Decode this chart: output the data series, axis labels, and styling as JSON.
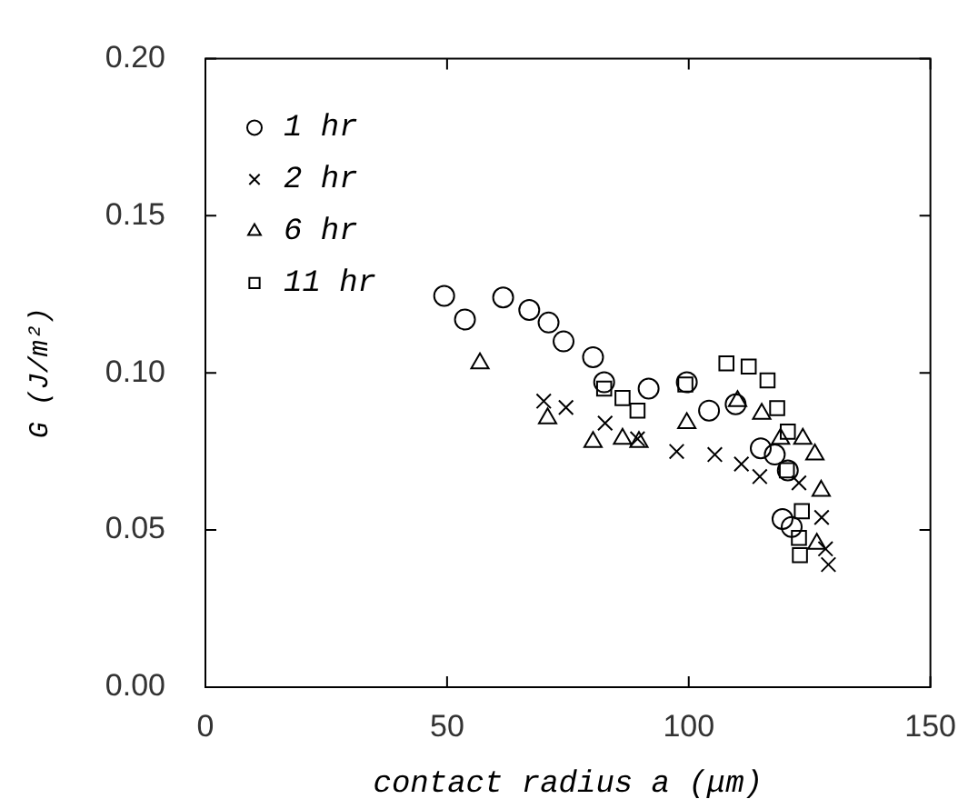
{
  "chart_data": {
    "type": "scatter",
    "xlabel": "contact radius a (μm)",
    "ylabel": "G (J/m²)",
    "xlim": [
      0,
      150
    ],
    "xticks": [
      0,
      50,
      100,
      150
    ],
    "ylim": [
      0,
      0.2
    ],
    "yticks": [
      {
        "value": 0,
        "label": "0.00"
      },
      {
        "value": 0.05,
        "label": "0.05"
      },
      {
        "value": 0.1,
        "label": "0.10"
      },
      {
        "value": 0.15,
        "label": "0.15"
      },
      {
        "value": 0.2,
        "label": "0.20"
      }
    ],
    "grid": false,
    "legend": "top left",
    "series": [
      {
        "name": "1 hr",
        "color": "#000000",
        "marker": "circle",
        "x": [
          49.4,
          53.7,
          61.6,
          67,
          71,
          74.1,
          80.2,
          82.5,
          91.7,
          99.6,
          104.2,
          109.7,
          114.9,
          117.8,
          120.5,
          119.4,
          121.3
        ],
        "values": [
          0.1245,
          0.117,
          0.124,
          0.12,
          0.116,
          0.11,
          0.105,
          0.097,
          0.095,
          0.097,
          0.088,
          0.09,
          0.076,
          0.074,
          0.069,
          0.0535,
          0.051
        ]
      },
      {
        "name": "2 hr",
        "color": "#000000",
        "marker": "cross",
        "x": [
          70,
          74.6,
          82.7,
          89.4,
          97.5,
          105.4,
          110.9,
          114.7,
          122.8,
          127.5,
          128.3,
          128.9
        ],
        "values": [
          0.091,
          0.089,
          0.084,
          0.079,
          0.075,
          0.074,
          0.071,
          0.067,
          0.065,
          0.054,
          0.044,
          0.039
        ]
      },
      {
        "name": "6 hr",
        "color": "#000000",
        "marker": "triangle",
        "x": [
          56.8,
          70.8,
          80.2,
          86.3,
          89.7,
          99.6,
          110.1,
          115.1,
          119,
          123.6,
          126.1,
          127.4,
          126.5
        ],
        "values": [
          0.103,
          0.0855,
          0.078,
          0.079,
          0.078,
          0.084,
          0.091,
          0.087,
          0.079,
          0.079,
          0.074,
          0.0625,
          0.0456
        ]
      },
      {
        "name": "11 hr",
        "color": "#000000",
        "marker": "square",
        "x": [
          82.5,
          86.3,
          89.4,
          99.3,
          107.8,
          112.4,
          116.3,
          118.3,
          120.5,
          120.3,
          123.4,
          122.8,
          123
        ],
        "values": [
          0.095,
          0.092,
          0.088,
          0.0963,
          0.103,
          0.102,
          0.0976,
          0.0888,
          0.0813,
          0.069,
          0.056,
          0.0475,
          0.042
        ]
      }
    ]
  }
}
